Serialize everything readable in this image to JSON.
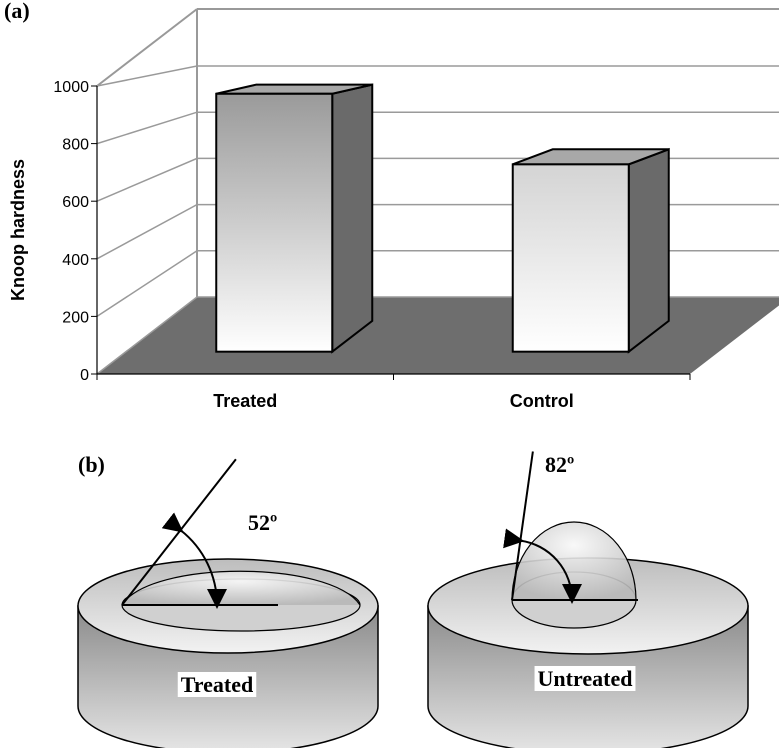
{
  "chart_data": {
    "type": "bar",
    "panel_label": "(a)",
    "y_label": "Knoop hardness",
    "categories": [
      "Treated",
      "Control"
    ],
    "values": [
      950,
      690
    ],
    "ylim": [
      0,
      1000
    ],
    "yticks": [
      0,
      200,
      400,
      600,
      800,
      1000
    ],
    "grid": true,
    "color": "#a8a8a8"
  },
  "diagram": {
    "panel_label": "(b)",
    "samples": [
      {
        "label": "Treated",
        "angle": 52,
        "angle_label": "52º"
      },
      {
        "label": "Untreated",
        "angle": 82,
        "angle_label": "82º"
      }
    ]
  }
}
